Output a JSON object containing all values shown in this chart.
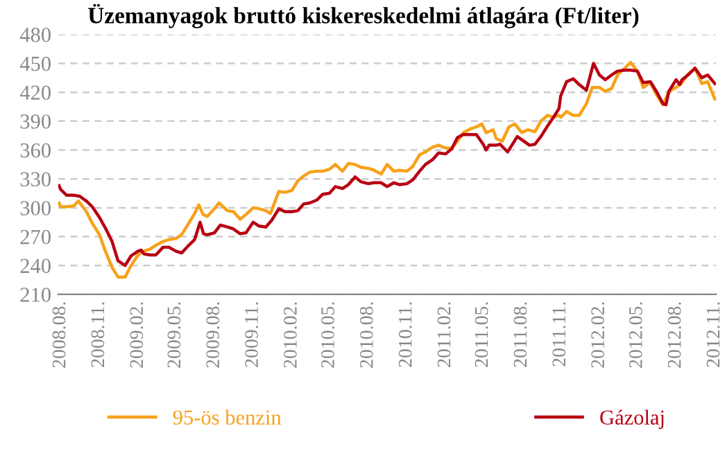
{
  "chart_data": {
    "type": "line",
    "title": "Üzemanyagok bruttó kiskereskedelmi átlagára (Ft/liter)",
    "series": [
      {
        "name": "95-ös benzin",
        "color": "#f7a11a",
        "x": [
          "2008-07-28",
          "2008-08-01",
          "2008-08-15",
          "2008-09-01",
          "2008-09-12",
          "2008-10-01",
          "2008-10-15",
          "2008-11-01",
          "2008-11-15",
          "2008-12-01",
          "2008-12-15",
          "2009-01-01",
          "2009-01-15",
          "2009-02-01",
          "2009-02-15",
          "2009-03-01",
          "2009-03-15",
          "2009-04-01",
          "2009-04-15",
          "2009-05-01",
          "2009-05-15",
          "2009-06-01",
          "2009-06-15",
          "2009-06-25",
          "2009-07-05",
          "2009-07-15",
          "2009-08-01",
          "2009-08-12",
          "2009-09-01",
          "2009-09-15",
          "2009-10-01",
          "2009-10-15",
          "2009-11-01",
          "2009-11-15",
          "2009-12-01",
          "2009-12-12",
          "2010-01-01",
          "2010-01-15",
          "2010-02-01",
          "2010-02-15",
          "2010-03-01",
          "2010-03-15",
          "2010-04-01",
          "2010-04-15",
          "2010-05-01",
          "2010-05-15",
          "2010-06-01",
          "2010-06-15",
          "2010-07-01",
          "2010-07-15",
          "2010-08-01",
          "2010-08-15",
          "2010-09-01",
          "2010-09-15",
          "2010-10-01",
          "2010-10-15",
          "2010-11-01",
          "2010-11-15",
          "2010-12-01",
          "2010-12-15",
          "2011-01-01",
          "2011-01-15",
          "2011-02-01",
          "2011-02-15",
          "2011-03-01",
          "2011-03-15",
          "2011-04-01",
          "2011-04-15",
          "2011-04-28",
          "2011-05-08",
          "2011-05-25",
          "2011-06-01",
          "2011-06-15",
          "2011-07-01",
          "2011-07-15",
          "2011-08-01",
          "2011-08-15",
          "2011-09-01",
          "2011-09-15",
          "2011-10-01",
          "2011-10-15",
          "2011-10-28",
          "2011-11-01",
          "2011-11-15",
          "2011-12-01",
          "2011-12-15",
          "2012-01-01",
          "2012-01-15",
          "2012-02-01",
          "2012-02-15",
          "2012-03-01",
          "2012-03-15",
          "2012-04-01",
          "2012-04-15",
          "2012-05-01",
          "2012-05-15",
          "2012-06-01",
          "2012-06-15",
          "2012-07-01",
          "2012-07-15",
          "2012-08-01",
          "2012-08-15",
          "2012-09-01",
          "2012-09-15",
          "2012-10-01",
          "2012-10-15",
          "2012-11-01"
        ],
        "values": [
          305,
          301,
          301,
          302,
          307,
          296,
          284,
          272,
          255,
          238,
          228,
          228,
          240,
          251,
          255,
          257,
          261,
          265,
          267,
          268,
          272,
          284,
          294,
          303,
          293,
          291,
          299,
          305,
          297,
          296,
          288,
          293,
          300,
          299,
          297,
          294,
          317,
          316,
          318,
          328,
          333,
          337,
          338,
          338,
          340,
          345,
          338,
          346,
          345,
          342,
          341,
          339,
          335,
          345,
          338,
          339,
          338,
          343,
          355,
          358,
          363,
          365,
          362,
          362,
          369,
          378,
          382,
          384,
          387,
          378,
          381,
          372,
          369,
          384,
          387,
          378,
          381,
          379,
          390,
          396,
          394,
          396,
          394,
          400,
          396,
          396,
          408,
          425,
          425,
          421,
          424,
          438,
          445,
          451,
          442,
          425,
          430,
          418,
          407,
          421,
          425,
          430,
          440,
          445,
          429,
          431,
          413
        ]
      },
      {
        "name": "Gázolaj",
        "color": "#b80012",
        "x": [
          "2008-07-28",
          "2008-08-01",
          "2008-08-15",
          "2008-09-01",
          "2008-09-15",
          "2008-10-01",
          "2008-10-15",
          "2008-11-01",
          "2008-11-15",
          "2008-12-01",
          "2008-12-15",
          "2009-01-01",
          "2009-01-15",
          "2009-02-01",
          "2009-02-08",
          "2009-02-15",
          "2009-03-01",
          "2009-03-15",
          "2009-04-01",
          "2009-04-15",
          "2009-05-01",
          "2009-05-15",
          "2009-06-01",
          "2009-06-15",
          "2009-06-28",
          "2009-07-06",
          "2009-07-15",
          "2009-08-01",
          "2009-08-15",
          "2009-09-01",
          "2009-09-15",
          "2009-10-01",
          "2009-10-15",
          "2009-11-01",
          "2009-11-15",
          "2009-12-01",
          "2009-12-15",
          "2010-01-01",
          "2010-01-15",
          "2010-02-01",
          "2010-02-15",
          "2010-03-01",
          "2010-03-15",
          "2010-04-01",
          "2010-04-15",
          "2010-05-01",
          "2010-05-15",
          "2010-06-01",
          "2010-06-15",
          "2010-07-01",
          "2010-07-15",
          "2010-08-01",
          "2010-08-15",
          "2010-09-01",
          "2010-09-15",
          "2010-10-01",
          "2010-10-15",
          "2010-11-01",
          "2010-11-15",
          "2010-12-01",
          "2010-12-15",
          "2011-01-01",
          "2011-01-15",
          "2011-02-01",
          "2011-02-15",
          "2011-03-01",
          "2011-03-15",
          "2011-04-01",
          "2011-04-15",
          "2011-05-01",
          "2011-05-08",
          "2011-05-15",
          "2011-06-01",
          "2011-06-10",
          "2011-06-28",
          "2011-07-21",
          "2011-08-19",
          "2011-09-01",
          "2011-09-15",
          "2011-10-01",
          "2011-10-15",
          "2011-10-28",
          "2011-11-01",
          "2011-11-15",
          "2011-12-01",
          "2011-12-15",
          "2012-01-01",
          "2012-01-18",
          "2012-02-01",
          "2012-02-15",
          "2012-03-01",
          "2012-03-15",
          "2012-04-01",
          "2012-04-15",
          "2012-05-01",
          "2012-05-15",
          "2012-06-01",
          "2012-06-15",
          "2012-07-01",
          "2012-07-08",
          "2012-07-15",
          "2012-08-01",
          "2012-08-10",
          "2012-08-15",
          "2012-09-01",
          "2012-09-15",
          "2012-10-01",
          "2012-10-15",
          "2012-11-01"
        ],
        "values": [
          323,
          319,
          313,
          313,
          312,
          307,
          301,
          290,
          279,
          265,
          245,
          240,
          250,
          255,
          256,
          252,
          251,
          251,
          259,
          259,
          255,
          253,
          261,
          267,
          285,
          273,
          272,
          274,
          282,
          280,
          278,
          273,
          274,
          285,
          281,
          280,
          287,
          299,
          296,
          296,
          297,
          304,
          305,
          308,
          314,
          315,
          322,
          320,
          324,
          332,
          327,
          325,
          326,
          326,
          322,
          326,
          324,
          325,
          329,
          338,
          345,
          350,
          357,
          356,
          361,
          373,
          376,
          376,
          376,
          366,
          360,
          365,
          365,
          366,
          358,
          374,
          365,
          366,
          374,
          385,
          394,
          403,
          416,
          431,
          434,
          428,
          422,
          450,
          438,
          433,
          438,
          442,
          443,
          443,
          442,
          430,
          431,
          421,
          408,
          407,
          421,
          433,
          428,
          433,
          439,
          445,
          435,
          438,
          429
        ]
      }
    ],
    "xlim": [
      "2008-07-26",
      "2012-11-04"
    ],
    "xticks": [
      {
        "value": "2008-08",
        "label": "2008.08."
      },
      {
        "value": "2008-11",
        "label": "2008.11."
      },
      {
        "value": "2009-02",
        "label": "2009.02."
      },
      {
        "value": "2009-05",
        "label": "2009.05."
      },
      {
        "value": "2009-08",
        "label": "2009.08."
      },
      {
        "value": "2009-11",
        "label": "2009.11."
      },
      {
        "value": "2010-02",
        "label": "2010.02."
      },
      {
        "value": "2010-05",
        "label": "2010.05."
      },
      {
        "value": "2010-08",
        "label": "2010.08."
      },
      {
        "value": "2010-11",
        "label": "2010.11."
      },
      {
        "value": "2011-02",
        "label": "2011.02."
      },
      {
        "value": "2011-05",
        "label": "2011.05."
      },
      {
        "value": "2011-08",
        "label": "2011.08."
      },
      {
        "value": "2011-11",
        "label": "2011.11."
      },
      {
        "value": "2012-02",
        "label": "2012.02."
      },
      {
        "value": "2012-05",
        "label": "2012.05."
      },
      {
        "value": "2012-08",
        "label": "2012.08."
      },
      {
        "value": "2012-11",
        "label": "2012.11."
      }
    ],
    "ylim": [
      210,
      480
    ],
    "yticks": [
      210,
      240,
      270,
      300,
      330,
      360,
      390,
      420,
      450,
      480
    ],
    "grid": "y",
    "legend": "bottom",
    "marker": "none",
    "line_style": "solid"
  }
}
